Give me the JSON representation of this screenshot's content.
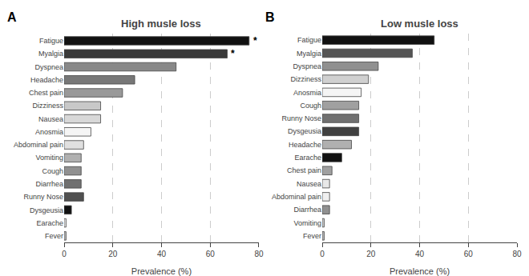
{
  "chart_data": [
    {
      "type": "bar",
      "orientation": "horizontal",
      "title": "High musle loss",
      "categories": [
        "Fatigue",
        "Myalgia",
        "Dyspnea",
        "Headache",
        "Chest pain",
        "Dizziness",
        "Nausea",
        "Anosmia",
        "Abdominal pain",
        "Vomiting",
        "Cough",
        "Diarrhea",
        "Runny Nose",
        "Dysgeusia",
        "Earache",
        "Fever"
      ],
      "values": [
        76,
        67,
        46,
        29,
        24,
        15,
        15,
        11,
        8,
        7,
        7,
        7,
        8,
        3,
        0.8,
        0.8
      ],
      "colors": [
        "#111111",
        "#3a3a3a",
        "#888888",
        "#777777",
        "#999999",
        "#c8c8c8",
        "#d8d8d8",
        "#f5f5f5",
        "#e0e0e0",
        "#b0b0b0",
        "#909090",
        "#707070",
        "#505050",
        "#111111",
        "#e8e8e8",
        "#bbbbbb"
      ],
      "xlabel": "Prevalence (%)",
      "xlim": [
        0,
        80
      ],
      "xticks": [
        0,
        20,
        40,
        60,
        80
      ],
      "grid": true,
      "annotations": [
        {
          "text": "A"
        },
        {
          "text": "*",
          "category": "Fatigue"
        },
        {
          "text": "*",
          "category": "Myalgia"
        }
      ]
    },
    {
      "type": "bar",
      "orientation": "horizontal",
      "title": "Low musle loss",
      "categories": [
        "Fatigue",
        "Myalgia",
        "Dyspnea",
        "Dizziness",
        "Anosmia",
        "Cough",
        "Runny Nose",
        "Dysgeusia",
        "Headache",
        "Earache",
        "Chest pain",
        "Nausea",
        "Abdominal pain",
        "Diarrhea",
        "Vomiting",
        "Fever"
      ],
      "values": [
        46,
        37,
        23,
        19,
        16,
        15,
        15,
        15,
        12,
        8,
        4,
        3,
        3,
        3,
        0.8,
        0.8
      ],
      "colors": [
        "#111111",
        "#555555",
        "#909090",
        "#d0d0d0",
        "#f5f5f5",
        "#a0a0a0",
        "#707070",
        "#404040",
        "#b0b0b0",
        "#111111",
        "#a0a0a0",
        "#e8e8e8",
        "#f0f0f0",
        "#909090",
        "#d0d0d0",
        "#bbbbbb"
      ],
      "xlabel": "Prevalence (%)",
      "xlim": [
        0,
        80
      ],
      "xticks": [
        0,
        20,
        40,
        60,
        80
      ],
      "grid": true,
      "annotations": [
        {
          "text": "B"
        }
      ]
    }
  ]
}
